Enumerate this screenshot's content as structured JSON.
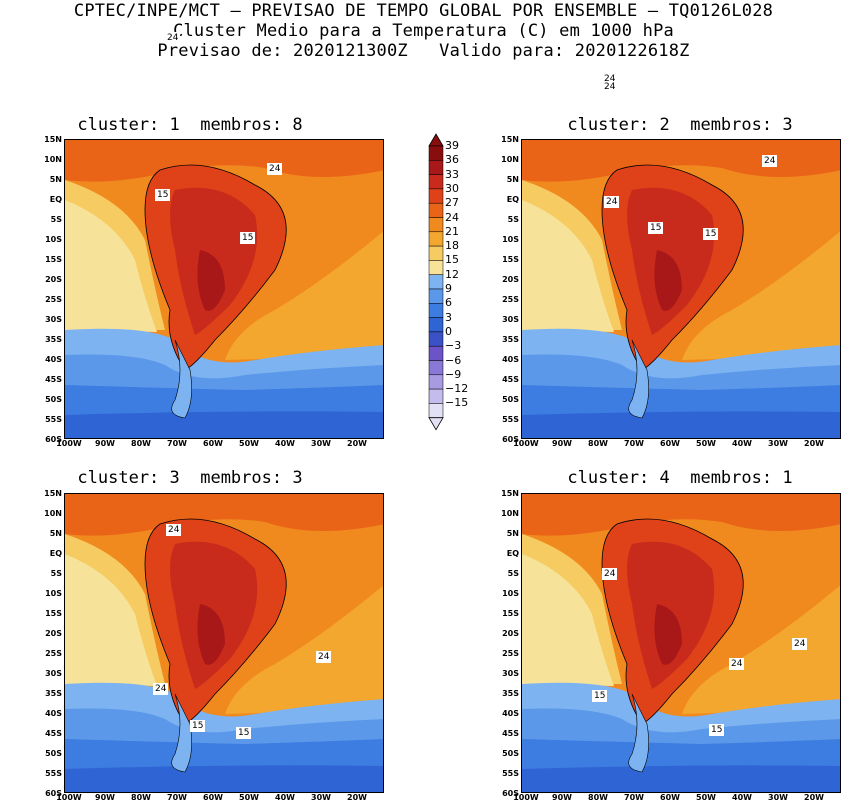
{
  "header": {
    "line1": "CPTEC/INPE/MCT — PREVISAO DE TEMPO GLOBAL POR ENSEMBLE — TQ0126L028",
    "line2": "Cluster Medio para a Temperatura (C) em 1000 hPa",
    "line3": "Previsao de: 2020121300Z   Valido para: 2020122618Z"
  },
  "panels": [
    {
      "title": "cluster: 1  membros: 8",
      "labels": [
        "24",
        "24",
        "15",
        "15"
      ]
    },
    {
      "title": "cluster: 2  membros: 3",
      "labels": [
        "24",
        "24",
        "24",
        "24",
        "15",
        "15"
      ]
    },
    {
      "title": "cluster: 3  membros: 3",
      "labels": [
        "24",
        "24",
        "24",
        "15",
        "15"
      ]
    },
    {
      "title": "cluster: 4  membros: 1",
      "labels": [
        "24",
        "24",
        "24",
        "15",
        "15"
      ]
    }
  ],
  "axes": {
    "lat_ticks": [
      "15N",
      "10N",
      "5N",
      "EQ",
      "5S",
      "10S",
      "15S",
      "20S",
      "25S",
      "30S",
      "35S",
      "40S",
      "45S",
      "50S",
      "55S",
      "60S"
    ],
    "lon_ticks": [
      "100W",
      "90W",
      "80W",
      "70W",
      "60W",
      "50W",
      "40W",
      "30W",
      "20W"
    ]
  },
  "colorbar": {
    "labels": [
      "39",
      "36",
      "33",
      "30",
      "27",
      "24",
      "21",
      "18",
      "15",
      "12",
      "9",
      "6",
      "3",
      "0",
      "−3",
      "−6",
      "−9",
      "−12",
      "−15"
    ],
    "colors": [
      "#e2e0f5",
      "#c3bcec",
      "#a89be2",
      "#8a78d6",
      "#6c54c8",
      "#3a52c6",
      "#2f64d4",
      "#3d7ce0",
      "#5b98ea",
      "#7cb3f0",
      "#f7e29a",
      "#f6cb62",
      "#f4a72e",
      "#f08a1f",
      "#ea6418",
      "#df4218",
      "#c82b1c",
      "#a91818",
      "#880d0d"
    ]
  }
}
